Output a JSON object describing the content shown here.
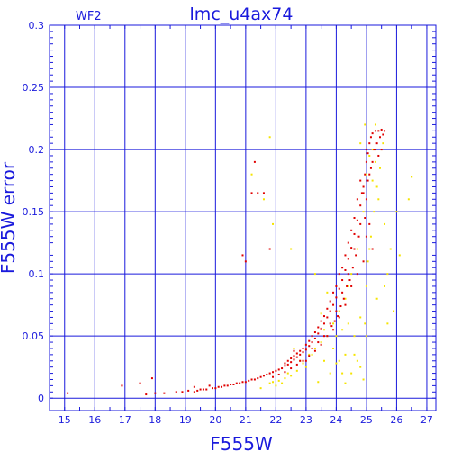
{
  "colors": {
    "axis": "#1a1adc",
    "grid": "#1a1adc",
    "primary_points": "#e00000",
    "secondary_points": "#f5e400"
  },
  "chart_data": {
    "type": "scatter",
    "title": "lmc_u4ax74",
    "panel_label": "WF2",
    "xlabel": "F555W",
    "ylabel": "F555W error",
    "xlim": [
      14.5,
      27.3
    ],
    "ylim": [
      -0.01,
      0.3
    ],
    "xticks": [
      15,
      16,
      17,
      18,
      19,
      20,
      21,
      22,
      23,
      24,
      25,
      26,
      27
    ],
    "xtick_labels": [
      "15",
      "16",
      "17",
      "18",
      "19",
      "20",
      "21",
      "22",
      "23",
      "24",
      "25",
      "26",
      "27"
    ],
    "yticks": [
      0,
      0.05,
      0.1,
      0.15,
      0.2,
      0.25,
      0.3
    ],
    "ytick_labels": [
      "0",
      "0.05",
      "0.1",
      "0.15",
      "0.2",
      "0.25",
      "0.3"
    ],
    "grid": true,
    "series": [
      {
        "color": "#f5e400",
        "points": [
          [
            21.8,
            0.21
          ],
          [
            21.2,
            0.18
          ],
          [
            21.6,
            0.16
          ],
          [
            21.9,
            0.14
          ],
          [
            22.5,
            0.12
          ],
          [
            23.3,
            0.1
          ],
          [
            23.5,
            0.068
          ],
          [
            23.6,
            0.055
          ],
          [
            23.7,
            0.085
          ],
          [
            24.0,
            0.05
          ],
          [
            24.1,
            0.03
          ],
          [
            24.2,
            0.02
          ],
          [
            24.3,
            0.012
          ],
          [
            24.4,
            0.09
          ],
          [
            24.5,
            0.02
          ],
          [
            24.6,
            0.035
          ],
          [
            24.7,
            0.03
          ],
          [
            24.8,
            0.025
          ],
          [
            24.9,
            0.015
          ],
          [
            24.95,
            0.06
          ],
          [
            25.0,
            0.09
          ],
          [
            25.1,
            0.12
          ],
          [
            25.2,
            0.175
          ],
          [
            25.3,
            0.19
          ],
          [
            25.4,
            0.16
          ],
          [
            25.5,
            0.2
          ],
          [
            25.6,
            0.14
          ],
          [
            25.7,
            0.1
          ],
          [
            25.8,
            0.12
          ],
          [
            25.9,
            0.07
          ],
          [
            26.0,
            0.15
          ],
          [
            26.1,
            0.115
          ],
          [
            26.4,
            0.16
          ],
          [
            26.5,
            0.178
          ],
          [
            25.0,
            0.05
          ],
          [
            24.8,
            0.065
          ],
          [
            24.6,
            0.05
          ],
          [
            24.3,
            0.035
          ],
          [
            24.0,
            0.028
          ],
          [
            23.8,
            0.02
          ],
          [
            23.4,
            0.013
          ],
          [
            23.2,
            0.035
          ],
          [
            23.0,
            0.025
          ],
          [
            22.8,
            0.03
          ],
          [
            22.6,
            0.04
          ],
          [
            22.4,
            0.02
          ],
          [
            22.2,
            0.012
          ],
          [
            22.0,
            0.01
          ],
          [
            21.8,
            0.012
          ],
          [
            21.5,
            0.008
          ],
          [
            25.05,
            0.11
          ],
          [
            25.15,
            0.13
          ],
          [
            25.25,
            0.15
          ],
          [
            25.35,
            0.17
          ],
          [
            25.45,
            0.185
          ],
          [
            25.55,
            0.205
          ],
          [
            25.2,
            0.2
          ],
          [
            25.1,
            0.195
          ],
          [
            25.0,
            0.18
          ],
          [
            24.9,
            0.15
          ],
          [
            24.7,
            0.12
          ],
          [
            24.5,
            0.1
          ],
          [
            24.3,
            0.08
          ],
          [
            24.1,
            0.07
          ],
          [
            23.9,
            0.06
          ],
          [
            23.7,
            0.05
          ],
          [
            23.5,
            0.045
          ],
          [
            23.3,
            0.04
          ],
          [
            23.1,
            0.035
          ],
          [
            22.9,
            0.028
          ],
          [
            22.7,
            0.022
          ],
          [
            22.5,
            0.018
          ],
          [
            22.3,
            0.016
          ],
          [
            22.1,
            0.014
          ],
          [
            21.9,
            0.013
          ],
          [
            25.6,
            0.09
          ],
          [
            25.7,
            0.06
          ],
          [
            25.3,
            0.22
          ],
          [
            24.95,
            0.22
          ],
          [
            24.8,
            0.205
          ],
          [
            25.35,
            0.08
          ],
          [
            24.2,
            0.055
          ],
          [
            24.4,
            0.06
          ],
          [
            23.9,
            0.04
          ],
          [
            23.6,
            0.03
          ]
        ]
      },
      {
        "color": "#e00000",
        "points": [
          [
            15.1,
            0.004
          ],
          [
            16.9,
            0.01
          ],
          [
            17.5,
            0.012
          ],
          [
            17.7,
            0.003
          ],
          [
            17.9,
            0.016
          ],
          [
            18.0,
            0.004
          ],
          [
            18.3,
            0.004
          ],
          [
            18.7,
            0.005
          ],
          [
            18.9,
            0.005
          ],
          [
            19.1,
            0.006
          ],
          [
            19.3,
            0.005
          ],
          [
            19.3,
            0.009
          ],
          [
            19.4,
            0.006
          ],
          [
            19.5,
            0.007
          ],
          [
            19.6,
            0.007
          ],
          [
            19.7,
            0.007
          ],
          [
            19.8,
            0.01
          ],
          [
            19.9,
            0.008
          ],
          [
            20.0,
            0.008
          ],
          [
            20.1,
            0.009
          ],
          [
            20.2,
            0.009
          ],
          [
            20.3,
            0.01
          ],
          [
            20.4,
            0.01
          ],
          [
            20.5,
            0.011
          ],
          [
            20.6,
            0.011
          ],
          [
            20.7,
            0.012
          ],
          [
            20.8,
            0.012
          ],
          [
            20.9,
            0.013
          ],
          [
            21.0,
            0.013
          ],
          [
            21.1,
            0.014
          ],
          [
            21.2,
            0.015
          ],
          [
            21.3,
            0.015
          ],
          [
            21.4,
            0.016
          ],
          [
            21.5,
            0.017
          ],
          [
            21.6,
            0.018
          ],
          [
            21.7,
            0.019
          ],
          [
            21.8,
            0.02
          ],
          [
            21.9,
            0.021
          ],
          [
            22.0,
            0.022
          ],
          [
            22.1,
            0.023
          ],
          [
            22.2,
            0.024
          ],
          [
            22.3,
            0.026
          ],
          [
            22.4,
            0.027
          ],
          [
            22.5,
            0.029
          ],
          [
            22.6,
            0.031
          ],
          [
            22.7,
            0.033
          ],
          [
            22.8,
            0.035
          ],
          [
            22.9,
            0.037
          ],
          [
            23.0,
            0.039
          ],
          [
            23.1,
            0.042
          ],
          [
            23.2,
            0.045
          ],
          [
            23.3,
            0.048
          ],
          [
            23.4,
            0.052
          ],
          [
            23.5,
            0.056
          ],
          [
            23.6,
            0.06
          ],
          [
            23.7,
            0.065
          ],
          [
            23.8,
            0.07
          ],
          [
            23.9,
            0.075
          ],
          [
            24.0,
            0.081
          ],
          [
            24.1,
            0.088
          ],
          [
            24.2,
            0.095
          ],
          [
            24.3,
            0.103
          ],
          [
            24.4,
            0.112
          ],
          [
            24.5,
            0.121
          ],
          [
            24.6,
            0.132
          ],
          [
            24.7,
            0.143
          ],
          [
            24.8,
            0.155
          ],
          [
            24.85,
            0.165
          ],
          [
            24.9,
            0.17
          ],
          [
            24.95,
            0.18
          ],
          [
            25.0,
            0.19
          ],
          [
            25.05,
            0.197
          ],
          [
            25.1,
            0.205
          ],
          [
            25.15,
            0.21
          ],
          [
            25.2,
            0.213
          ],
          [
            25.3,
            0.215
          ],
          [
            25.4,
            0.215
          ],
          [
            25.5,
            0.216
          ],
          [
            25.6,
            0.215
          ],
          [
            21.0,
            0.11
          ],
          [
            20.9,
            0.115
          ],
          [
            21.8,
            0.12
          ],
          [
            21.3,
            0.19
          ],
          [
            21.4,
            0.165
          ],
          [
            21.6,
            0.165
          ],
          [
            21.2,
            0.165
          ],
          [
            22.6,
            0.038
          ],
          [
            22.8,
            0.03
          ],
          [
            23.0,
            0.03
          ],
          [
            23.2,
            0.04
          ],
          [
            23.4,
            0.045
          ],
          [
            23.6,
            0.05
          ],
          [
            23.8,
            0.06
          ],
          [
            24.0,
            0.07
          ],
          [
            24.2,
            0.085
          ],
          [
            24.4,
            0.1
          ],
          [
            24.6,
            0.12
          ],
          [
            24.8,
            0.14
          ],
          [
            25.0,
            0.16
          ],
          [
            25.1,
            0.14
          ],
          [
            25.2,
            0.12
          ],
          [
            25.0,
            0.13
          ],
          [
            24.9,
            0.11
          ],
          [
            24.7,
            0.1
          ],
          [
            24.5,
            0.09
          ],
          [
            24.3,
            0.075
          ],
          [
            24.1,
            0.065
          ],
          [
            23.9,
            0.055
          ],
          [
            23.7,
            0.05
          ],
          [
            23.5,
            0.043
          ],
          [
            23.3,
            0.038
          ],
          [
            23.1,
            0.034
          ],
          [
            22.9,
            0.03
          ],
          [
            22.7,
            0.027
          ],
          [
            22.5,
            0.024
          ],
          [
            22.3,
            0.021
          ],
          [
            22.1,
            0.019
          ],
          [
            21.9,
            0.017
          ],
          [
            24.95,
            0.145
          ],
          [
            25.05,
            0.175
          ],
          [
            25.15,
            0.185
          ],
          [
            25.25,
            0.2
          ],
          [
            25.35,
            0.205
          ],
          [
            25.45,
            0.21
          ],
          [
            25.55,
            0.212
          ],
          [
            24.75,
            0.13
          ],
          [
            24.65,
            0.115
          ],
          [
            24.55,
            0.105
          ],
          [
            24.45,
            0.095
          ],
          [
            24.35,
            0.09
          ],
          [
            24.25,
            0.08
          ],
          [
            24.15,
            0.074
          ],
          [
            24.05,
            0.066
          ],
          [
            23.95,
            0.062
          ],
          [
            23.85,
            0.058
          ],
          [
            25.0,
            0.2
          ],
          [
            25.1,
            0.18
          ],
          [
            24.9,
            0.165
          ],
          [
            24.8,
            0.175
          ],
          [
            25.2,
            0.19
          ],
          [
            25.3,
            0.2
          ],
          [
            25.4,
            0.195
          ],
          [
            25.5,
            0.2
          ],
          [
            24.7,
            0.16
          ],
          [
            24.6,
            0.145
          ],
          [
            24.5,
            0.135
          ],
          [
            24.4,
            0.125
          ],
          [
            24.3,
            0.115
          ],
          [
            24.2,
            0.105
          ],
          [
            24.1,
            0.1
          ],
          [
            24.0,
            0.09
          ],
          [
            23.9,
            0.085
          ],
          [
            23.8,
            0.078
          ],
          [
            23.7,
            0.072
          ],
          [
            23.6,
            0.066
          ],
          [
            23.5,
            0.062
          ],
          [
            23.4,
            0.057
          ],
          [
            23.3,
            0.053
          ],
          [
            23.2,
            0.05
          ],
          [
            23.1,
            0.046
          ],
          [
            23.0,
            0.043
          ],
          [
            22.9,
            0.04
          ],
          [
            22.8,
            0.038
          ],
          [
            22.7,
            0.036
          ],
          [
            22.6,
            0.034
          ],
          [
            22.5,
            0.032
          ],
          [
            22.4,
            0.03
          ],
          [
            22.3,
            0.028
          ]
        ]
      }
    ]
  }
}
